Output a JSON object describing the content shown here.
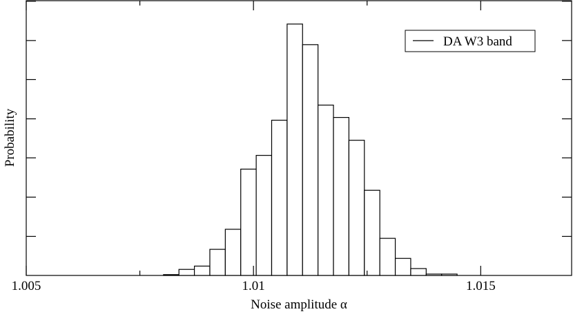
{
  "chart_data": {
    "type": "bar",
    "xlabel": "Noise amplitude α",
    "ylabel": "Probability",
    "xlim": [
      1.005,
      1.017
    ],
    "ylim": [
      0,
      1
    ],
    "xticks": [
      1.005,
      1.01,
      1.015
    ],
    "xtick_labels": [
      "1.005",
      "1.01",
      "1.015"
    ],
    "yticks": [
      0.142,
      0.285,
      0.428,
      0.57,
      0.713,
      0.855,
      0.998
    ],
    "grid": false,
    "legend_position": "top-right",
    "series": [
      {
        "name": "DA W3 band",
        "bin_width": 0.00034,
        "bins": [
          {
            "x0": 1.00802,
            "value": 0.003
          },
          {
            "x0": 1.00836,
            "value": 0.022
          },
          {
            "x0": 1.0087,
            "value": 0.034
          },
          {
            "x0": 1.00904,
            "value": 0.095
          },
          {
            "x0": 1.00938,
            "value": 0.168
          },
          {
            "x0": 1.00972,
            "value": 0.387
          },
          {
            "x0": 1.01006,
            "value": 0.437
          },
          {
            "x0": 1.0104,
            "value": 0.565
          },
          {
            "x0": 1.01074,
            "value": 0.915
          },
          {
            "x0": 1.01108,
            "value": 0.84
          },
          {
            "x0": 1.01142,
            "value": 0.62
          },
          {
            "x0": 1.01176,
            "value": 0.575
          },
          {
            "x0": 1.0121,
            "value": 0.492
          },
          {
            "x0": 1.01244,
            "value": 0.31
          },
          {
            "x0": 1.01278,
            "value": 0.135
          },
          {
            "x0": 1.01312,
            "value": 0.062
          },
          {
            "x0": 1.01346,
            "value": 0.025
          },
          {
            "x0": 1.0138,
            "value": 0.005
          },
          {
            "x0": 1.01414,
            "value": 0.005
          }
        ]
      }
    ]
  }
}
